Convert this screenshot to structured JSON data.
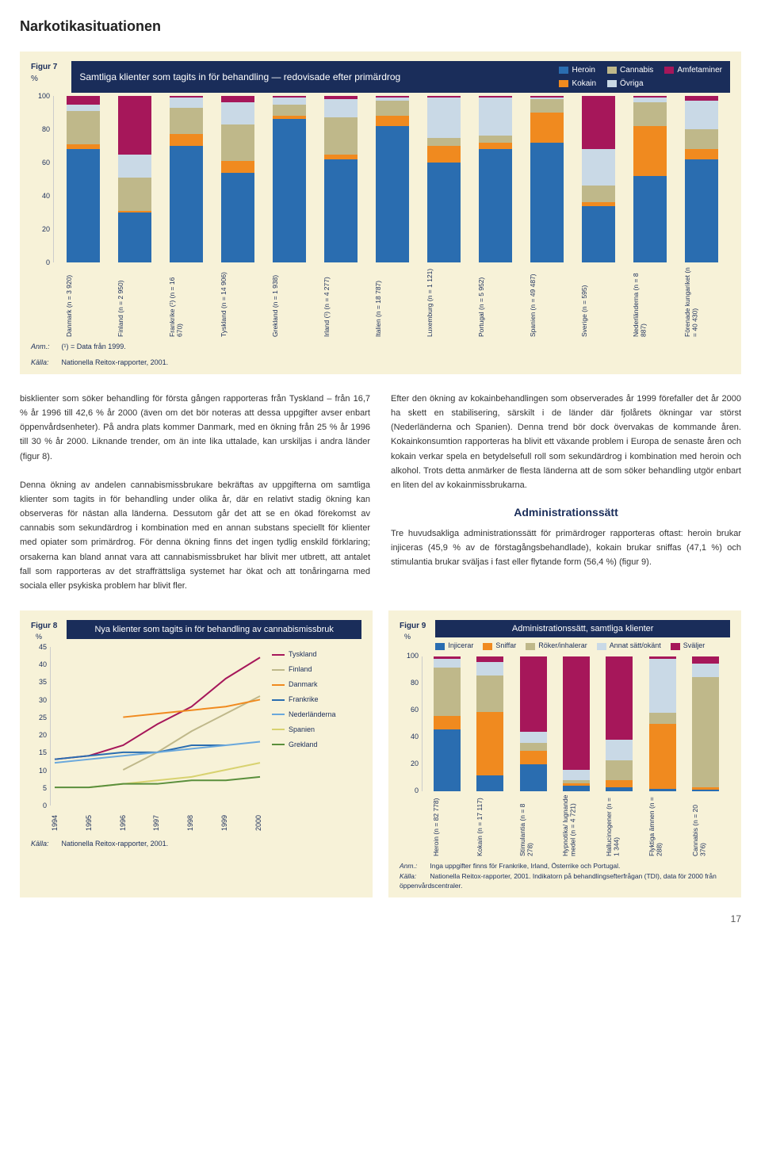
{
  "page_title": "Narkotikasituationen",
  "page_number": "17",
  "colors": {
    "heroin": "#2a6db0",
    "kokain": "#f08a1f",
    "cannabis": "#bfb88a",
    "ovriga": "#c9d9e6",
    "amfetaminer": "#a6175a",
    "panel_bg": "#f7f2d8",
    "navy": "#1a2d5a",
    "injicerar": "#2a6db0",
    "sniffar": "#f08a1f",
    "roker": "#bfb88a",
    "annat": "#c9d9e6",
    "svaljer": "#a6175a"
  },
  "fig7": {
    "label": "Figur 7",
    "y_unit": "%",
    "title": "Samtliga klienter som tagits in för behandling — redovisade efter primärdrog",
    "legend": [
      {
        "label": "Heroin",
        "color": "#2a6db0"
      },
      {
        "label": "Kokain",
        "color": "#f08a1f"
      },
      {
        "label": "Cannabis",
        "color": "#bfb88a"
      },
      {
        "label": "Övriga",
        "color": "#c9d9e6"
      },
      {
        "label": "Amfetaminer",
        "color": "#a6175a"
      }
    ],
    "ylim": [
      0,
      100
    ],
    "yticks": [
      0,
      20,
      40,
      60,
      80,
      100
    ],
    "categories": [
      {
        "label": "Danmark",
        "n": "(n = 3 920)",
        "vals": {
          "heroin": 68,
          "kokain": 3,
          "cannabis": 20,
          "ovriga": 4,
          "amfetaminer": 5
        }
      },
      {
        "label": "Finland",
        "n": "(n = 2 950)",
        "vals": {
          "heroin": 30,
          "kokain": 1,
          "cannabis": 20,
          "ovriga": 14,
          "amfetaminer": 35
        }
      },
      {
        "label": "Frankrike (¹)",
        "n": "(n = 16 670)",
        "vals": {
          "heroin": 70,
          "kokain": 7,
          "cannabis": 16,
          "ovriga": 6,
          "amfetaminer": 1
        }
      },
      {
        "label": "Tyskland",
        "n": "(n = 14 906)",
        "vals": {
          "heroin": 54,
          "kokain": 7,
          "cannabis": 22,
          "ovriga": 13,
          "amfetaminer": 4
        }
      },
      {
        "label": "Grekland",
        "n": "(n = 1 938)",
        "vals": {
          "heroin": 86,
          "kokain": 2,
          "cannabis": 7,
          "ovriga": 4,
          "amfetaminer": 1
        }
      },
      {
        "label": "Irland (¹)",
        "n": "(n = 4 277)",
        "vals": {
          "heroin": 62,
          "kokain": 3,
          "cannabis": 22,
          "ovriga": 11,
          "amfetaminer": 2
        }
      },
      {
        "label": "Italien",
        "n": "(n = 18 787)",
        "vals": {
          "heroin": 82,
          "kokain": 6,
          "cannabis": 9,
          "ovriga": 2,
          "amfetaminer": 1
        }
      },
      {
        "label": "Luxemburg",
        "n": "(n = 1 121)",
        "vals": {
          "heroin": 60,
          "kokain": 10,
          "cannabis": 5,
          "ovriga": 24,
          "amfetaminer": 1
        }
      },
      {
        "label": "Portugal",
        "n": "(n = 5 952)",
        "vals": {
          "heroin": 68,
          "kokain": 4,
          "cannabis": 4,
          "ovriga": 23,
          "amfetaminer": 1
        }
      },
      {
        "label": "Spanien",
        "n": "(n = 49 487)",
        "vals": {
          "heroin": 72,
          "kokain": 18,
          "cannabis": 8,
          "ovriga": 1,
          "amfetaminer": 1
        }
      },
      {
        "label": "Sverige",
        "n": "(n = 595)",
        "vals": {
          "heroin": 34,
          "kokain": 2,
          "cannabis": 10,
          "ovriga": 22,
          "amfetaminer": 32
        }
      },
      {
        "label": "Nederländerna",
        "n": "(n = 8 887)",
        "vals": {
          "heroin": 52,
          "kokain": 30,
          "cannabis": 14,
          "ovriga": 3,
          "amfetaminer": 1
        }
      },
      {
        "label": "Förenade kungariket",
        "n": "(n = 40 430)",
        "vals": {
          "heroin": 62,
          "kokain": 6,
          "cannabis": 12,
          "ovriga": 17,
          "amfetaminer": 3
        }
      }
    ],
    "note_anm_label": "Anm.:",
    "note_anm": "(¹) = Data från 1999.",
    "note_kalla_label": "Källa:",
    "note_kalla": "Nationella Reitox-rapporter, 2001."
  },
  "body": {
    "col1_p1": "bisklienter som söker behandling för första gången rapporteras från Tyskland – från 16,7 % år 1996 till 42,6 % år 2000 (även om det bör noteras att dessa uppgifter avser enbart öppenvårdsenheter). På andra plats kommer Danmark, med en ökning från 25 % år 1996 till 30 % år 2000. Liknande trender, om än inte lika uttalade, kan urskiljas i andra länder (figur 8).",
    "col1_p2": "Denna ökning av andelen cannabismissbrukare bekräftas av uppgifterna om samtliga klienter som tagits in för behandling under olika år, där en relativt stadig ökning kan observeras för nästan alla länderna. Dessutom går det att se en ökad förekomst av cannabis som sekundärdrog i kombination med en annan substans speciellt för klienter med opiater som primärdrog. För denna ökning finns det ingen tydlig enskild förklaring; orsakerna kan bland annat vara att cannabismissbruket har blivit mer utbrett, att antalet fall som rapporteras av det straffrättsliga systemet har ökat och att tonåringarna med sociala eller psykiska problem har blivit fler.",
    "col2_p1": "Efter den ökning av kokainbehandlingen som observerades år 1999 förefaller det år 2000 ha skett en stabilisering, särskilt i de länder där fjolårets ökningar var störst (Nederländerna och Spanien). Denna trend bör dock övervakas de kommande åren. Kokainkonsumtion rapporteras ha blivit ett växande problem i Europa de senaste åren och kokain verkar spela en betydelsefull roll som sekundärdrog i kombination med heroin och alkohol. Trots detta anmärker de flesta länderna att de som söker behandling utgör enbart en liten del av kokainmissbrukarna.",
    "col2_h": "Administrationssätt",
    "col2_p2": "Tre huvudsakliga administrationssätt för primärdroger rapporteras oftast: heroin brukar injiceras (45,9 % av de förstagångsbehandlade), kokain brukar sniffas (47,1 %) och stimulantia brukar sväljas i fast eller flytande form (56,4 %) (figur 9)."
  },
  "fig8": {
    "label": "Figur 8",
    "y_unit": "%",
    "title": "Nya klienter som tagits in för behandling av cannabismissbruk",
    "ylim": [
      0,
      45
    ],
    "yticks": [
      0,
      5,
      10,
      15,
      20,
      25,
      30,
      35,
      40,
      45
    ],
    "years": [
      1994,
      1995,
      1996,
      1997,
      1998,
      1999,
      2000
    ],
    "series": [
      {
        "label": "Tyskland",
        "color": "#a6175a",
        "vals": [
          13,
          14,
          17,
          23,
          28,
          36,
          42
        ]
      },
      {
        "label": "Finland",
        "color": "#bfb88a",
        "vals": [
          null,
          null,
          10,
          15,
          21,
          26,
          31
        ]
      },
      {
        "label": "Danmark",
        "color": "#f08a1f",
        "vals": [
          null,
          null,
          25,
          26,
          27,
          28,
          30
        ]
      },
      {
        "label": "Frankrike",
        "color": "#2a6db0",
        "vals": [
          13,
          14,
          15,
          15,
          17,
          17,
          null
        ]
      },
      {
        "label": "Nederländerna",
        "color": "#6aa8dc",
        "vals": [
          12,
          13,
          14,
          15,
          16,
          17,
          18
        ]
      },
      {
        "label": "Spanien",
        "color": "#d8d270",
        "vals": [
          null,
          5,
          6,
          7,
          8,
          10,
          12
        ]
      },
      {
        "label": "Grekland",
        "color": "#5a8f3c",
        "vals": [
          5,
          5,
          6,
          6,
          7,
          7,
          8
        ]
      }
    ],
    "source_label": "Källa:",
    "source": "Nationella Reitox-rapporter, 2001."
  },
  "fig9": {
    "label": "Figur 9",
    "y_unit": "%",
    "title": "Administrationssätt, samtliga klienter",
    "legend": [
      {
        "label": "Injicerar",
        "color": "#2a6db0"
      },
      {
        "label": "Sniffar",
        "color": "#f08a1f"
      },
      {
        "label": "Röker/inhalerar",
        "color": "#bfb88a"
      },
      {
        "label": "Annat sätt/okänt",
        "color": "#c9d9e6"
      },
      {
        "label": "Sväljer",
        "color": "#a6175a"
      }
    ],
    "ylim": [
      0,
      100
    ],
    "yticks": [
      0,
      20,
      40,
      60,
      80,
      100
    ],
    "categories": [
      {
        "label": "Heroin",
        "n": "(n = 82 778)",
        "vals": {
          "injicerar": 46,
          "sniffar": 10,
          "roker": 36,
          "annat": 6,
          "svaljer": 2
        }
      },
      {
        "label": "Kokain",
        "n": "(n = 17 117)",
        "vals": {
          "injicerar": 12,
          "sniffar": 47,
          "roker": 27,
          "annat": 10,
          "svaljer": 4
        }
      },
      {
        "label": "Stimulantia",
        "n": "(n = 8 278)",
        "vals": {
          "injicerar": 20,
          "sniffar": 10,
          "roker": 6,
          "annat": 8,
          "svaljer": 56
        }
      },
      {
        "label": "Hypnotika/ lugnande medel",
        "n": "(n = 4 721)",
        "vals": {
          "injicerar": 4,
          "sniffar": 2,
          "roker": 2,
          "annat": 8,
          "svaljer": 84
        }
      },
      {
        "label": "Hallucinogener",
        "n": "(n = 1 344)",
        "vals": {
          "injicerar": 3,
          "sniffar": 5,
          "roker": 15,
          "annat": 15,
          "svaljer": 62
        }
      },
      {
        "label": "Flyktiga ämnen",
        "n": "(n = 288)",
        "vals": {
          "injicerar": 2,
          "sniffar": 48,
          "roker": 8,
          "annat": 40,
          "svaljer": 2
        }
      },
      {
        "label": "Cannabis",
        "n": "(n = 20 376)",
        "vals": {
          "injicerar": 1,
          "sniffar": 2,
          "roker": 82,
          "annat": 10,
          "svaljer": 5
        }
      }
    ],
    "note_anm_label": "Anm.:",
    "note_anm": "Inga uppgifter finns för Frankrike, Irland, Österrike och Portugal.",
    "note_kalla_label": "Källa:",
    "note_kalla": "Nationella Reitox-rapporter, 2001. Indikatorn på behandlingsefterfrågan (TDI), data för 2000 från öppenvårdscentraler."
  }
}
